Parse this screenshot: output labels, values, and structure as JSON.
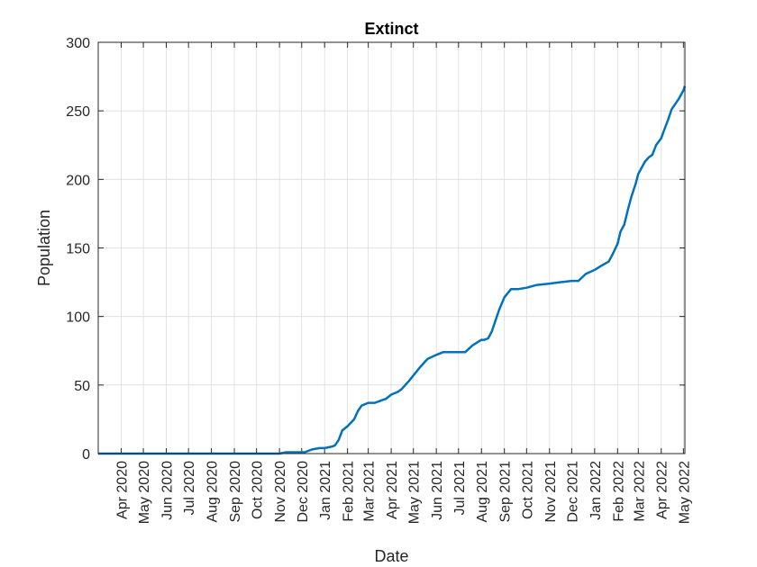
{
  "chart_data": {
    "type": "line",
    "title": "Extinct",
    "xlabel": "Date",
    "ylabel": "Population",
    "ylim": [
      0,
      300
    ],
    "yticks": [
      0,
      50,
      100,
      150,
      200,
      250,
      300
    ],
    "xlim": [
      "2020-03-01",
      "2022-05-03"
    ],
    "xtick_dates": [
      "2020-04-01",
      "2020-05-01",
      "2020-06-01",
      "2020-07-01",
      "2020-08-01",
      "2020-09-01",
      "2020-10-01",
      "2020-11-01",
      "2020-12-01",
      "2021-01-01",
      "2021-02-01",
      "2021-03-01",
      "2021-04-01",
      "2021-05-01",
      "2021-06-01",
      "2021-07-01",
      "2021-08-01",
      "2021-09-01",
      "2021-10-01",
      "2021-11-01",
      "2021-12-01",
      "2022-01-01",
      "2022-02-01",
      "2022-03-01",
      "2022-04-01",
      "2022-05-01"
    ],
    "xtick_labels": [
      "Apr 2020",
      "May 2020",
      "Jun 2020",
      "Jul 2020",
      "Aug 2020",
      "Sep 2020",
      "Oct 2020",
      "Nov 2020",
      "Dec 2020",
      "Jan 2021",
      "Feb 2021",
      "Mar 2021",
      "Apr 2021",
      "May 2021",
      "Jun 2021",
      "Jul 2021",
      "Aug 2021",
      "Sep 2021",
      "Oct 2021",
      "Nov 2021",
      "Dec 2021",
      "Jan 2022",
      "Feb 2022",
      "Mar 2022",
      "Apr 2022",
      "May 2022"
    ],
    "grid": true,
    "line_color": "#0072BD",
    "series": [
      {
        "x": [
          "2020-03-01",
          "2020-11-01",
          "2020-11-10",
          "2020-11-25",
          "2020-12-05",
          "2020-12-15",
          "2020-12-25",
          "2021-01-01",
          "2021-01-10",
          "2021-01-15",
          "2021-01-20",
          "2021-01-25",
          "2021-02-01",
          "2021-02-10",
          "2021-02-15",
          "2021-02-20",
          "2021-03-01",
          "2021-03-10",
          "2021-03-15",
          "2021-03-20",
          "2021-03-25",
          "2021-04-01",
          "2021-04-10",
          "2021-04-15",
          "2021-04-20",
          "2021-04-25",
          "2021-05-01",
          "2021-05-10",
          "2021-05-20",
          "2021-06-01",
          "2021-06-10",
          "2021-06-20",
          "2021-07-01",
          "2021-07-10",
          "2021-07-20",
          "2021-08-01",
          "2021-08-05",
          "2021-08-10",
          "2021-08-15",
          "2021-08-20",
          "2021-08-25",
          "2021-09-01",
          "2021-09-10",
          "2021-09-20",
          "2021-10-01",
          "2021-10-15",
          "2021-11-01",
          "2021-11-15",
          "2021-12-01",
          "2021-12-10",
          "2021-12-20",
          "2022-01-01",
          "2022-01-10",
          "2022-01-20",
          "2022-01-25",
          "2022-02-01",
          "2022-02-05",
          "2022-02-10",
          "2022-02-15",
          "2022-02-20",
          "2022-02-25",
          "2022-03-01",
          "2022-03-10",
          "2022-03-15",
          "2022-03-20",
          "2022-03-25",
          "2022-04-01",
          "2022-04-05",
          "2022-04-10",
          "2022-04-15",
          "2022-04-20",
          "2022-04-25",
          "2022-05-01",
          "2022-05-03"
        ],
        "y": [
          0,
          0,
          1,
          1,
          1,
          3,
          4,
          4,
          5,
          6,
          10,
          17,
          20,
          25,
          31,
          35,
          37,
          37,
          38,
          39,
          40,
          43,
          45,
          47,
          50,
          53,
          57,
          63,
          69,
          72,
          74,
          74,
          74,
          74,
          79,
          83,
          83,
          84,
          89,
          97,
          105,
          114,
          120,
          120,
          121,
          123,
          124,
          125,
          126,
          126,
          131,
          134,
          137,
          140,
          145,
          153,
          162,
          167,
          178,
          188,
          196,
          204,
          213,
          216,
          218,
          225,
          230,
          236,
          243,
          251,
          255,
          259,
          265,
          268
        ]
      }
    ]
  }
}
